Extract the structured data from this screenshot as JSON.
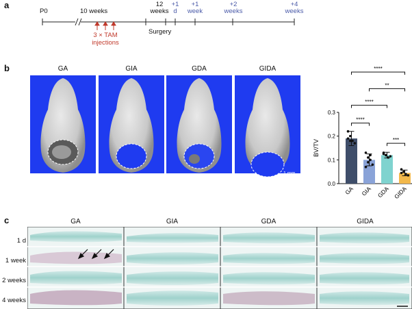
{
  "panels": {
    "a": "a",
    "b": "b",
    "c": "c"
  },
  "timeline": {
    "p0": "P0",
    "ten_weeks": "10 weeks",
    "twelve_weeks_line1": "12",
    "twelve_weeks_line2": "weeks",
    "plus1d_line1": "+1",
    "plus1d_line2": "d",
    "plus1w_line1": "+1",
    "plus1w_line2": "week",
    "plus2w_line1": "+2",
    "plus2w_line2": "weeks",
    "plus4w_line1": "+4",
    "plus4w_line2": "weeks",
    "tam_line1": "3 × TAM",
    "tam_line2": "injections",
    "surgery": "Surgery"
  },
  "groups": [
    "GA",
    "GIA",
    "GDA",
    "GIDA"
  ],
  "scale_bar": "1 mm",
  "chart_data": {
    "type": "bar",
    "categories": [
      "GA",
      "GIA",
      "GDA",
      "GIDA"
    ],
    "values": [
      0.19,
      0.1,
      0.12,
      0.045
    ],
    "errors": [
      0.03,
      0.025,
      0.012,
      0.012
    ],
    "points": [
      [
        0.22,
        0.2,
        0.18,
        0.17,
        0.19,
        0.18
      ],
      [
        0.13,
        0.11,
        0.1,
        0.08,
        0.07,
        0.09,
        0.12
      ],
      [
        0.13,
        0.12,
        0.11,
        0.115,
        0.125,
        0.12
      ],
      [
        0.06,
        0.05,
        0.04,
        0.035,
        0.045,
        0.05
      ]
    ],
    "colors": [
      "#3f4e6a",
      "#8aa3d8",
      "#7fd3cf",
      "#f2b84b"
    ],
    "ylabel": "BV/TV",
    "ylim": [
      0,
      0.3
    ],
    "yticks": [
      "0.0",
      "0.1",
      "0.2",
      "0.3"
    ],
    "significance": [
      {
        "pair": [
          0,
          1
        ],
        "label": "****"
      },
      {
        "pair": [
          0,
          2
        ],
        "label": "****"
      },
      {
        "pair": [
          1,
          3
        ],
        "label": "**"
      },
      {
        "pair": [
          2,
          3
        ],
        "label": "***"
      },
      {
        "pair": [
          0,
          3
        ],
        "label": "****"
      }
    ]
  },
  "histology": {
    "rows": [
      "1 d",
      "1 week",
      "2 weeks",
      "4 weeks"
    ]
  }
}
